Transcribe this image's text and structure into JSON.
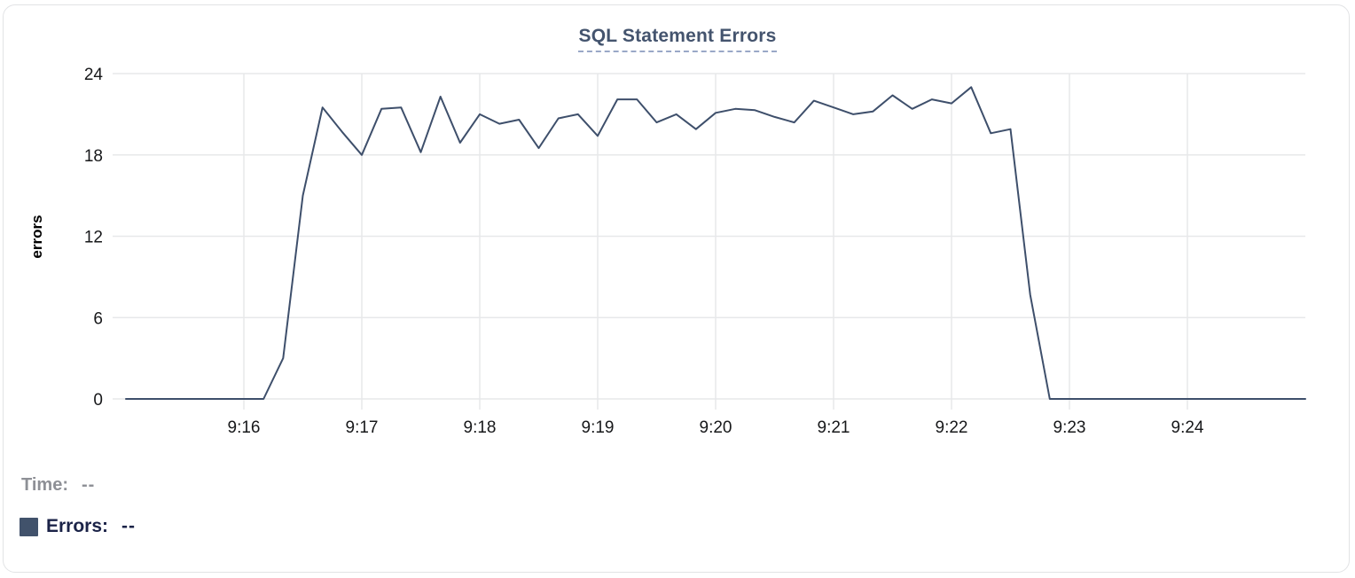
{
  "chart_data": {
    "type": "line",
    "title": "SQL Statement Errors",
    "ylabel": "errors",
    "xlabel": "",
    "ylim": [
      0,
      24
    ],
    "yticks": [
      0,
      6,
      12,
      18,
      24
    ],
    "xticks": [
      "9:16",
      "9:17",
      "9:18",
      "9:19",
      "9:20",
      "9:21",
      "9:22",
      "9:23",
      "9:24"
    ],
    "grid": true,
    "legend_position": "bottom-left",
    "x": [
      "9:15:00",
      "9:15:10",
      "9:15:20",
      "9:15:30",
      "9:15:40",
      "9:15:50",
      "9:16:00",
      "9:16:10",
      "9:16:20",
      "9:16:30",
      "9:16:40",
      "9:16:50",
      "9:17:00",
      "9:17:10",
      "9:17:20",
      "9:17:30",
      "9:17:40",
      "9:17:50",
      "9:18:00",
      "9:18:10",
      "9:18:20",
      "9:18:30",
      "9:18:40",
      "9:18:50",
      "9:19:00",
      "9:19:10",
      "9:19:20",
      "9:19:30",
      "9:19:40",
      "9:19:50",
      "9:20:00",
      "9:20:10",
      "9:20:20",
      "9:20:30",
      "9:20:40",
      "9:20:50",
      "9:21:00",
      "9:21:10",
      "9:21:20",
      "9:21:30",
      "9:21:40",
      "9:21:50",
      "9:22:00",
      "9:22:10",
      "9:22:20",
      "9:22:30",
      "9:22:40",
      "9:22:50",
      "9:23:00",
      "9:23:10",
      "9:23:20",
      "9:23:30",
      "9:23:40",
      "9:23:50",
      "9:24:00",
      "9:24:10",
      "9:24:20",
      "9:24:30",
      "9:24:40",
      "9:24:50",
      "9:25:00"
    ],
    "series": [
      {
        "name": "Errors",
        "values": [
          0,
          0,
          0,
          0,
          0,
          0,
          0,
          0,
          3,
          15,
          21.5,
          19.7,
          18,
          21.4,
          21.5,
          18.2,
          22.3,
          18.9,
          21,
          20.3,
          20.6,
          18.5,
          20.7,
          21,
          19.4,
          22.1,
          22.1,
          20.4,
          21,
          19.9,
          21.1,
          21.4,
          21.3,
          20.8,
          20.4,
          22,
          21.5,
          21,
          21.2,
          22.4,
          21.4,
          22.1,
          21.8,
          23,
          19.6,
          19.9,
          7.7,
          0,
          0,
          0,
          0,
          0,
          0,
          0,
          0,
          0,
          0,
          0,
          0,
          0,
          0
        ]
      }
    ]
  },
  "tooltip": {
    "time_label": "Time:",
    "time_value": "--",
    "errors_label": "Errors:",
    "errors_value": "--"
  },
  "colors": {
    "series_line": "#3e4f6b",
    "legend_swatch": "#41526b",
    "title_text": "#44546e",
    "title_underline": "#9aa8c7",
    "gridline": "#e7e8ea",
    "tick_text": "#17181a",
    "axis_label_text": "#000000",
    "time_readout_text": "#8e9096",
    "errors_readout_text": "#1b2348",
    "card_border": "#e2e3e5"
  }
}
